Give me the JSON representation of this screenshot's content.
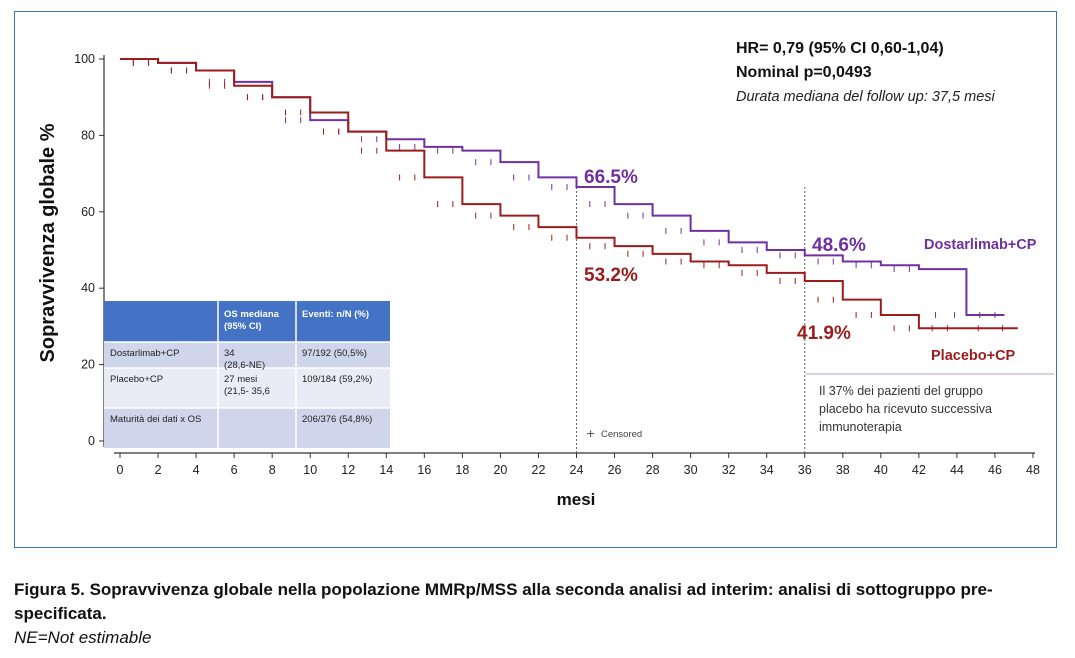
{
  "chart_data": {
    "type": "line",
    "title": "",
    "xlabel": "mesi",
    "ylabel": "Sopravvivenza globale %",
    "xlim": [
      0,
      48
    ],
    "ylim": [
      0,
      100
    ],
    "xticks": [
      "0",
      "2",
      "4",
      "6",
      "8",
      "10",
      "12",
      "14",
      "16",
      "18",
      "20",
      "22",
      "24",
      "26",
      "28",
      "30",
      "32",
      "34",
      "36",
      "38",
      "40",
      "42",
      "44",
      "46",
      "48"
    ],
    "yticks": [
      "0",
      "20",
      "40",
      "60",
      "80",
      "100"
    ],
    "series": [
      {
        "name": "Dostarlimab+CP",
        "color": "#7030a0",
        "x": [
          0,
          2,
          4,
          6,
          8,
          10,
          12,
          14,
          16,
          18,
          20,
          22,
          24,
          26,
          28,
          30,
          32,
          34,
          36,
          38,
          40,
          42,
          44.5,
          46.5
        ],
        "y": [
          100,
          99,
          97,
          94,
          90,
          84,
          81,
          79,
          77,
          76,
          73,
          69,
          66.5,
          62,
          59,
          55,
          52,
          50,
          48.6,
          47,
          46,
          45,
          33,
          33
        ]
      },
      {
        "name": "Placebo+CP",
        "color": "#9b1c1c",
        "x": [
          0,
          2,
          4,
          6,
          8,
          10,
          12,
          14,
          16,
          18,
          20,
          22,
          24,
          26,
          28,
          30,
          32,
          34,
          36,
          38,
          40,
          42,
          44,
          47.2
        ],
        "y": [
          100,
          99,
          97,
          93,
          90,
          86,
          81,
          76,
          69,
          62,
          59,
          56,
          53.2,
          51,
          49,
          47,
          46,
          44,
          41.9,
          37,
          33,
          29.5,
          29.5,
          29.5
        ]
      }
    ],
    "point_labels": [
      {
        "text": "66.5%",
        "series": "Dostarlimab+CP",
        "x": 24,
        "y": 66.5
      },
      {
        "text": "53.2%",
        "series": "Placebo+CP",
        "x": 24,
        "y": 53.2
      },
      {
        "text": "48.6%",
        "series": "Dostarlimab+CP",
        "x": 36,
        "y": 48.6
      },
      {
        "text": "41.9%",
        "series": "Placebo+CP",
        "x": 36,
        "y": 41.9
      }
    ],
    "vlines": [
      24,
      36
    ],
    "legend_labels": {
      "dostarlimab": "Dostarlimab+CP",
      "placebo": "Placebo+CP"
    },
    "stats": {
      "hr": "HR= 0,79 (95% CI 0,60-1,04)",
      "p": "Nominal p=0,0493",
      "followup": "Durata mediana del follow up: 37,5 mesi"
    },
    "censored_label": "Censored",
    "note": "Il 37% dei pazienti del gruppo placebo ha ricevuto successiva immunoterapia",
    "table": {
      "header_color": "#4472c4",
      "headers": [
        "",
        "OS mediana (95% CI)",
        "Eventi: n/N (%)"
      ],
      "rows": [
        [
          "Dostarlimab+CP",
          "34 (28,6-NE)",
          "97/192 (50,5%)"
        ],
        [
          "Placebo+CP",
          "27 mesi (21,5- 35,6",
          "109/184 (59,2%)"
        ],
        [
          "Maturità dei dati x OS",
          "",
          "206/376 (54,8%)"
        ]
      ]
    }
  },
  "caption": {
    "title": "Figura 5. Sopravvivenza globale nella popolazione MMRp/MSS alla seconda analisi ad interim: analisi di sottogruppo pre-specificata.",
    "note": "NE=Not estimable"
  }
}
